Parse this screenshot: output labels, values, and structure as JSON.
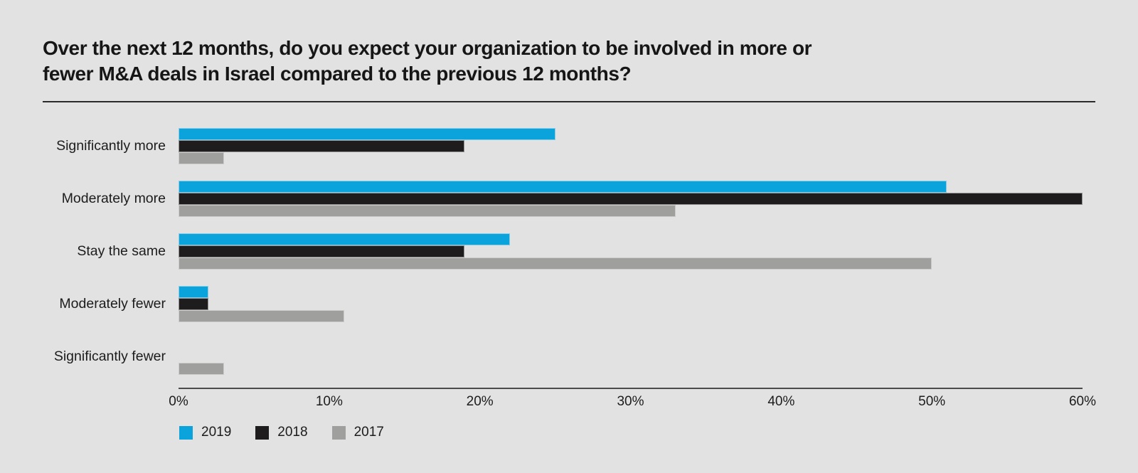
{
  "title": {
    "line1": "Over the next 12 months, do you expect your organization to be involved in more or",
    "line2": "fewer M&A deals in Israel compared to the previous 12 months?"
  },
  "chart_data": {
    "type": "bar",
    "orientation": "horizontal",
    "title": "Over the next 12 months, do you expect your organization to be involved in more or fewer M&A deals in Israel compared to the previous 12 months?",
    "categories": [
      "Significantly more",
      "Moderately more",
      "Stay the same",
      "Moderately fewer",
      "Significantly fewer"
    ],
    "series": [
      {
        "name": "2019",
        "color": "#0aa3db",
        "values": [
          25,
          51,
          22,
          2,
          0
        ]
      },
      {
        "name": "2018",
        "color": "#1e1c1c",
        "values": [
          19,
          60,
          19,
          2,
          0
        ]
      },
      {
        "name": "2017",
        "color": "#9f9f9d",
        "values": [
          3,
          33,
          50,
          11,
          3
        ]
      }
    ],
    "xlabel": "",
    "ylabel": "",
    "xlim": [
      0,
      60
    ],
    "x_ticks": [
      "0%",
      "10%",
      "20%",
      "30%",
      "40%",
      "50%",
      "60%"
    ],
    "grid": false,
    "legend_position": "bottom"
  },
  "colors": {
    "background": "#e2e2e2",
    "axis_line": "#4b4b4b",
    "text": "#1c1c1c"
  }
}
